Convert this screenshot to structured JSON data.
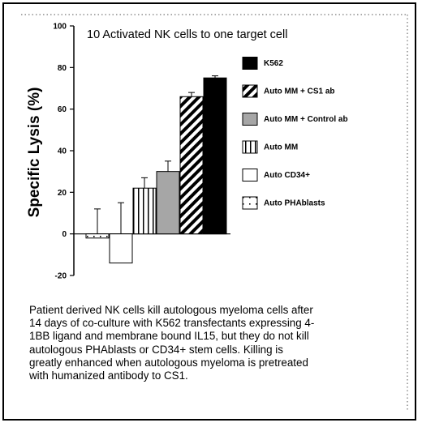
{
  "chart_data": {
    "type": "bar",
    "title": "10 Activated NK cells to one target cell",
    "ylabel": "Specific Lysis (%)",
    "xlabel": "",
    "ylim": [
      -20,
      100
    ],
    "yticks": [
      "100",
      "80",
      "60",
      "40",
      "20",
      "0",
      "-20"
    ],
    "ytick_values": [
      100,
      80,
      60,
      40,
      20,
      0,
      -20
    ],
    "grid": false,
    "legend_position": "right",
    "series": [
      {
        "name": "Auto PHAblasts",
        "value": -2,
        "error": 12,
        "pattern": "dots",
        "color": "#ffffff"
      },
      {
        "name": "Auto CD34+",
        "value": -14,
        "error": 15,
        "pattern": "none",
        "color": "#ffffff"
      },
      {
        "name": "Auto MM",
        "value": 22,
        "error": 5,
        "pattern": "vertical",
        "color": "#ffffff"
      },
      {
        "name": "Auto MM + Control ab",
        "value": 30,
        "error": 5,
        "pattern": "solid",
        "color": "#a6a6a6"
      },
      {
        "name": "Auto MM + CS1 ab",
        "value": 66,
        "error": 2,
        "pattern": "diagonal",
        "color": "#ffffff"
      },
      {
        "name": "K562",
        "value": 75,
        "error": 1,
        "pattern": "solid",
        "color": "#000000"
      }
    ],
    "legend_order": [
      "K562",
      "Auto MM + CS1 ab",
      "Auto MM + Control ab",
      "Auto MM",
      "Auto CD34+",
      "Auto PHAblasts"
    ]
  },
  "caption": "Patient derived NK cells kill autologous myeloma cells after\n14 days of co-culture with K562 transfectants expressing 4-\n1BB ligand and membrane bound IL15, but they do not kill\nautologous PHAblasts or CD34+ stem cells.  Killing is\ngreatly enhanced when autologous myeloma is pretreated\nwith humanized antibody to CS1."
}
